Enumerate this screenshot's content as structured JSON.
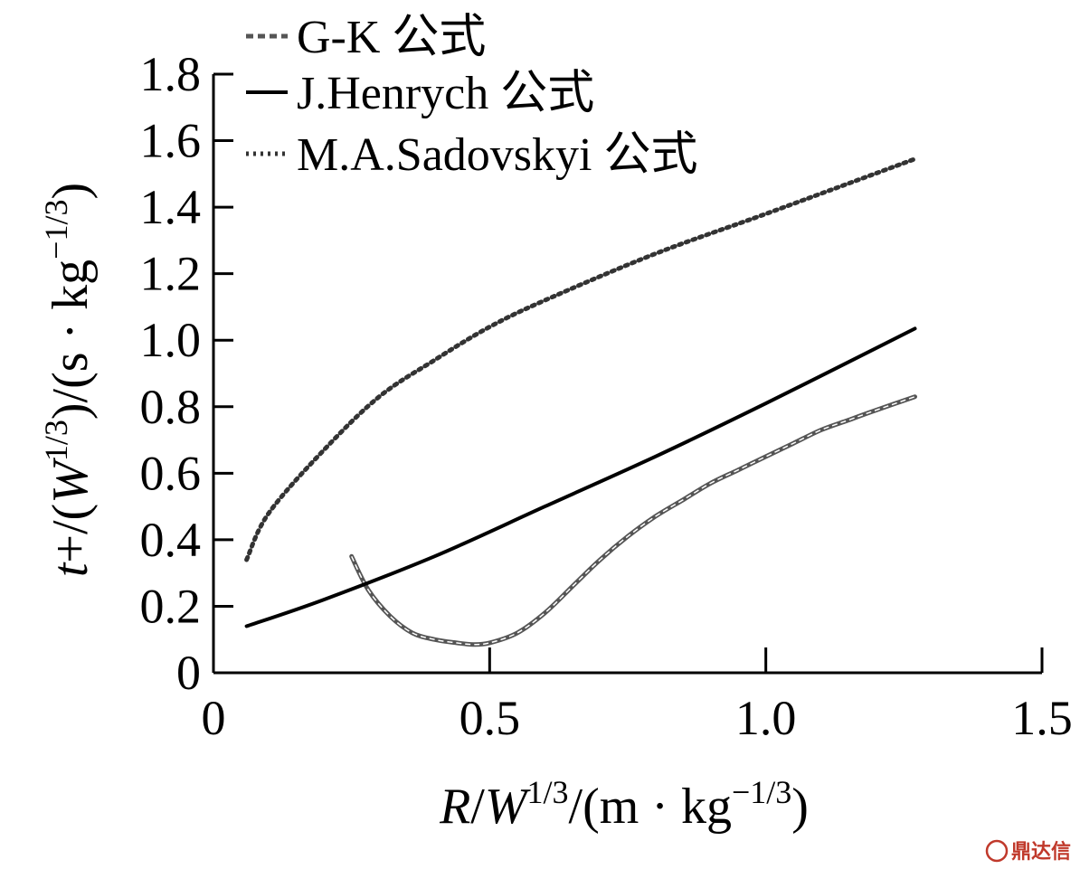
{
  "chart_data": {
    "type": "line",
    "xlabel": "R/W1/3/(m · kg−1/3)",
    "ylabel": "t+/(W1/3)/(s · kg−1/3)",
    "xlim": [
      0,
      1.5
    ],
    "ylim": [
      0,
      1.8
    ],
    "x_ticks": [
      "0",
      "0.5",
      "1.0",
      "1.5"
    ],
    "y_ticks": [
      "0",
      "0.2",
      "0.4",
      "0.6",
      "0.8",
      "1.0",
      "1.2",
      "1.4",
      "1.6",
      "1.8"
    ],
    "grid": false,
    "legend_position": "top-left",
    "series": [
      {
        "name": "G-K 公式",
        "style": "dashed",
        "color": "#555555",
        "x": [
          0.25,
          0.28,
          0.32,
          0.36,
          0.4,
          0.44,
          0.47,
          0.5,
          0.55,
          0.6,
          0.65,
          0.7,
          0.75,
          0.8,
          0.85,
          0.9,
          0.95,
          1.0,
          1.05,
          1.1,
          1.15,
          1.2,
          1.27
        ],
        "y": [
          0.35,
          0.25,
          0.17,
          0.12,
          0.1,
          0.09,
          0.085,
          0.09,
          0.12,
          0.18,
          0.26,
          0.34,
          0.41,
          0.47,
          0.52,
          0.57,
          0.61,
          0.65,
          0.69,
          0.73,
          0.76,
          0.79,
          0.83
        ]
      },
      {
        "name": "J.Henrych 公式",
        "style": "solid",
        "color": "#000000",
        "x": [
          0.06,
          0.2,
          0.4,
          0.6,
          0.8,
          1.0,
          1.27
        ],
        "y": [
          0.14,
          0.22,
          0.35,
          0.5,
          0.65,
          0.81,
          1.035
        ]
      },
      {
        "name": "M.A.Sadovskyi 公式",
        "style": "dotted",
        "color": "#333333",
        "x": [
          0.06,
          0.1,
          0.2,
          0.3,
          0.4,
          0.5,
          0.6,
          0.8,
          1.0,
          1.27
        ],
        "y": [
          0.34,
          0.48,
          0.67,
          0.83,
          0.94,
          1.04,
          1.12,
          1.26,
          1.38,
          1.545
        ]
      }
    ]
  },
  "watermark": {
    "icon": "logo-seal-icon",
    "text": "鼎达信"
  }
}
